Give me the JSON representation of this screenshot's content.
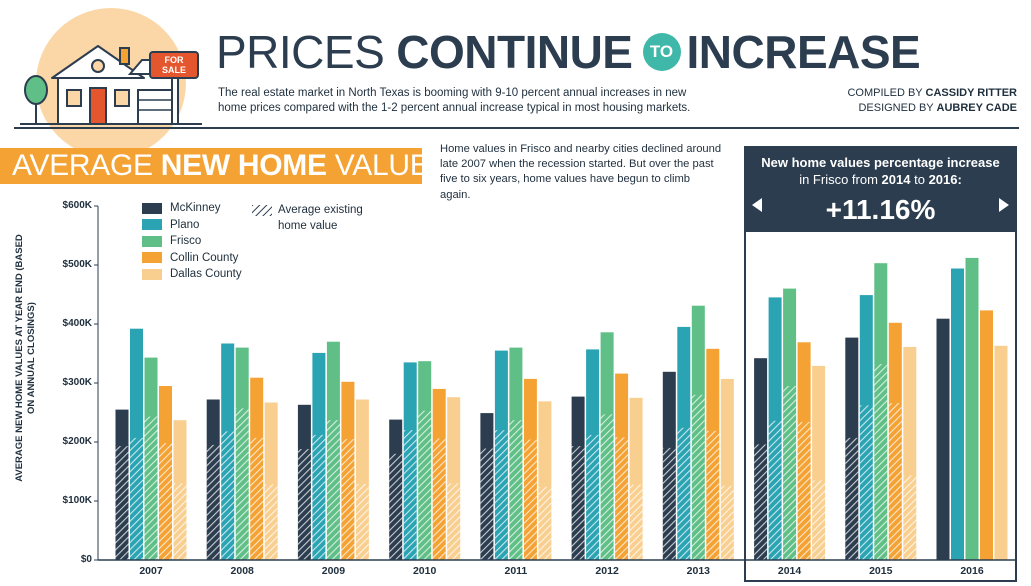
{
  "header": {
    "title_light": "PRICES",
    "title_bold_1": "CONTINUE",
    "title_badge": "TO",
    "title_bold_2": "INCREASE",
    "intro": "The real estate market in North Texas is booming with 9-10 percent annual increases in new home prices compared with the 1-2 percent annual increase typical in most housing markets.",
    "compiled_label": "COMPILED BY",
    "compiled_name": "CASSIDY RITTER",
    "designed_label": "DESIGNED BY",
    "designed_name": "AUBREY CADE",
    "house_sign": [
      "FOR",
      "SALE"
    ]
  },
  "section": {
    "title_light_1": "AVERAGE",
    "title_bold": "NEW HOME",
    "title_light_2": "VALUES",
    "note": "Home values in Frisco and nearby cities declined around late 2007 when the recession started. But over the past five to six years, home values have begun to climb again."
  },
  "callout": {
    "label_1": "New home values percentage increase",
    "label_2": "in Frisco from",
    "label_year_from": "2014",
    "label_to": "to",
    "label_year_to": "2016:",
    "value": "+11.16%"
  },
  "chart_data": {
    "type": "bar",
    "title": "",
    "xlabel": "",
    "ylabel": "AVERAGE NEW HOME VALUES AT YEAR END (BASED ON ANNUAL CLOSINGS)",
    "ylim": [
      0,
      600000
    ],
    "yticks": [
      0,
      100000,
      200000,
      300000,
      400000,
      500000,
      600000
    ],
    "ytick_labels": [
      "$0",
      "$100K",
      "$200K",
      "$300K",
      "$400K",
      "$500K",
      "$600K"
    ],
    "categories": [
      "2007",
      "2008",
      "2009",
      "2010",
      "2011",
      "2012",
      "2013",
      "2014",
      "2015",
      "2016"
    ],
    "legend_position": "top-left",
    "grid": false,
    "existing_label": "Average existing home value",
    "series": [
      {
        "name": "McKinney",
        "color": "#2b3d4f",
        "values": [
          255000,
          272000,
          263000,
          238000,
          249000,
          277000,
          319000,
          342000,
          377000,
          409000
        ],
        "existing": [
          193000,
          195000,
          188000,
          180000,
          189000,
          193000,
          190000,
          196000,
          207000,
          null
        ]
      },
      {
        "name": "Plano",
        "color": "#2aa3b3",
        "values": [
          392000,
          367000,
          351000,
          335000,
          355000,
          357000,
          395000,
          445000,
          449000,
          494000
        ],
        "existing": [
          207000,
          218000,
          212000,
          220000,
          220000,
          212000,
          224000,
          236000,
          262000,
          null
        ]
      },
      {
        "name": "Frisco",
        "color": "#5fbf86",
        "values": [
          343000,
          360000,
          370000,
          337000,
          360000,
          386000,
          431000,
          460000,
          503000,
          512000
        ],
        "existing": [
          243000,
          257000,
          237000,
          253000,
          237000,
          247000,
          280000,
          295000,
          332000,
          null
        ]
      },
      {
        "name": "Collin County",
        "color": "#f4a233",
        "values": [
          295000,
          309000,
          302000,
          290000,
          307000,
          316000,
          358000,
          369000,
          402000,
          423000
        ],
        "existing": [
          198000,
          207000,
          205000,
          206000,
          204000,
          208000,
          219000,
          234000,
          266000,
          null
        ]
      },
      {
        "name": "Dallas County",
        "color": "#f9cf90",
        "values": [
          237000,
          267000,
          272000,
          276000,
          269000,
          275000,
          307000,
          329000,
          361000,
          363000
        ],
        "existing": [
          130000,
          128000,
          129000,
          130000,
          124000,
          128000,
          126000,
          135000,
          143000,
          null
        ]
      }
    ]
  }
}
